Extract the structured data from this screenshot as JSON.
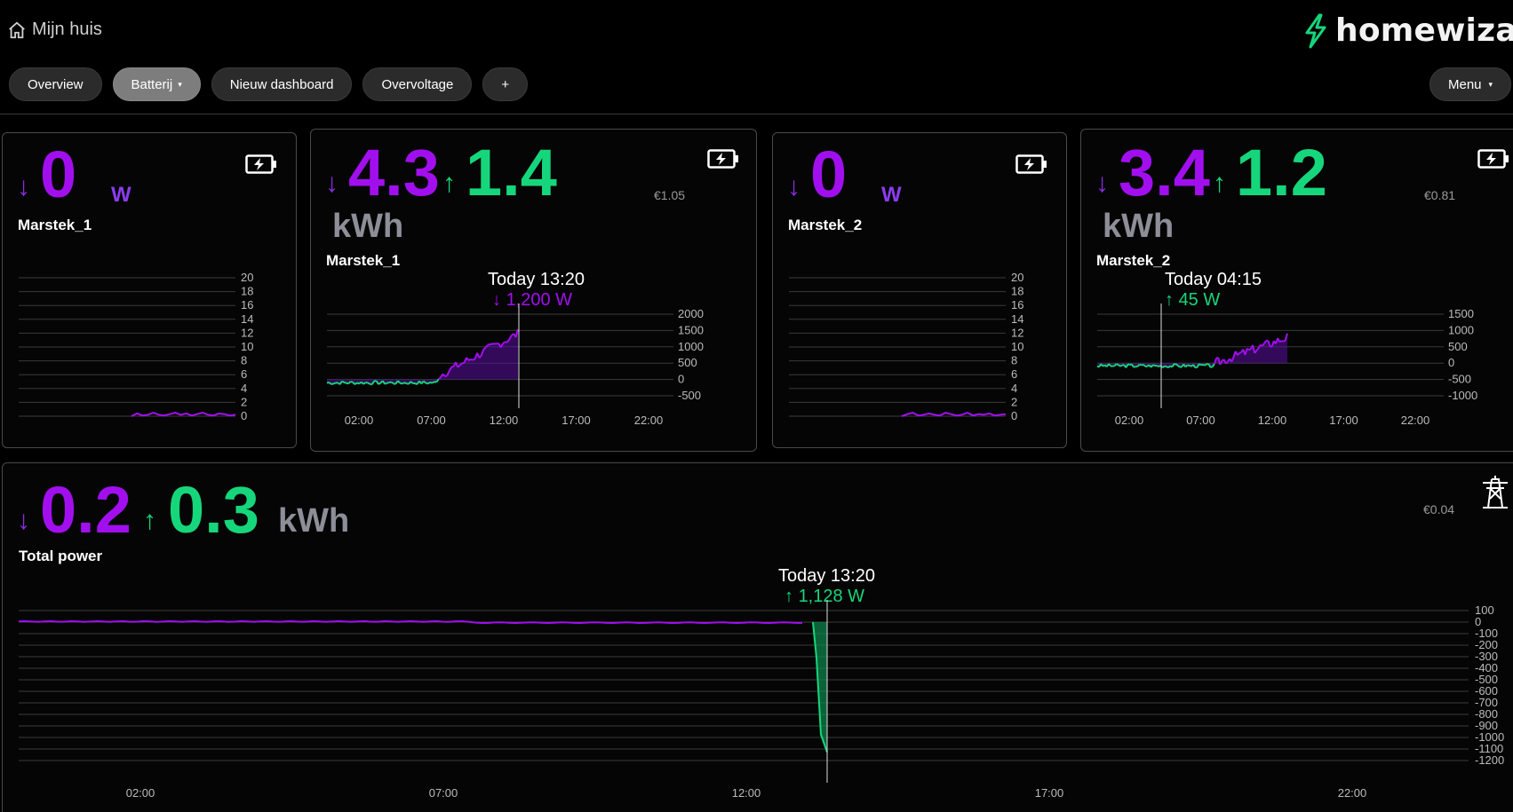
{
  "header": {
    "home_label": "Mijn huis",
    "logo_text": "homewizard",
    "tabs": [
      {
        "label": "Overview",
        "active": false
      },
      {
        "label": "Batterij",
        "active": true,
        "caret": "▾"
      },
      {
        "label": "Nieuw dashboard",
        "active": false
      },
      {
        "label": "Overvoltage",
        "active": false
      },
      {
        "label": "+",
        "active": false
      }
    ],
    "menu_label": "Menu",
    "menu_caret": "▾"
  },
  "icons": {
    "home": "home-icon",
    "logo": "lightning-icon",
    "battery": "battery-charging-icon",
    "grid": "power-pylon-icon"
  },
  "colors": {
    "purple": "#a20fee",
    "green": "#16d67b",
    "unit_gray": "#8e8e98"
  },
  "cards": [
    {
      "id": "marstek1-power",
      "arrow_down": "↓",
      "value": "0",
      "unit": "W",
      "name": "Marstek_1",
      "chart_data": {
        "type": "line",
        "y_ticks": [
          "20",
          "18",
          "16",
          "14",
          "12",
          "10",
          "8",
          "6",
          "4",
          "2",
          "0"
        ],
        "ylim": [
          0,
          20
        ],
        "grid": true,
        "series": [
          {
            "color": "#a20fee",
            "values": [
              0,
              0.4,
              0.1,
              0.2,
              0.5,
              0.2,
              0.1,
              0.3,
              0.5,
              0.2,
              0.4,
              0.1,
              0.3,
              0.5,
              0.2,
              0.1,
              0.4,
              0.3,
              0.1,
              0.2
            ]
          }
        ]
      }
    },
    {
      "id": "marstek1-energy",
      "arrow_down": "↓",
      "value_import": "4.3",
      "arrow_up": "↑",
      "value_export": "1.4",
      "unit": "kWh",
      "name": "Marstek_1",
      "cost": "€1.05",
      "tooltip": {
        "time": "Today 13:20",
        "arrow": "↓",
        "value": "1,200 W"
      },
      "chart_data": {
        "type": "area",
        "x_ticks": [
          "02:00",
          "07:00",
          "12:00",
          "17:00",
          "22:00"
        ],
        "y_ticks": [
          "2000",
          "1500",
          "1000",
          "500",
          "0",
          "-500"
        ],
        "ylim": [
          -500,
          2000
        ],
        "grid": true,
        "cursor_time": "13:20"
      }
    },
    {
      "id": "marstek2-power",
      "arrow_down": "↓",
      "value": "0",
      "unit": "W",
      "name": "Marstek_2",
      "chart_data": {
        "type": "line",
        "y_ticks": [
          "20",
          "18",
          "16",
          "14",
          "12",
          "10",
          "8",
          "6",
          "4",
          "2",
          "0"
        ],
        "ylim": [
          0,
          20
        ],
        "grid": true,
        "series": [
          {
            "color": "#a20fee",
            "values": [
              0,
              0.3,
              0.5,
              0.1,
              0.2,
              0.4,
              0.2,
              0.1,
              0.5,
              0.3,
              0.1,
              0.2,
              0.5,
              0.1,
              0.3,
              0.2,
              0.4,
              0.1,
              0.2,
              0.3
            ]
          }
        ]
      }
    },
    {
      "id": "marstek2-energy",
      "arrow_down": "↓",
      "value_import": "3.4",
      "arrow_up": "↑",
      "value_export": "1.2",
      "unit": "kWh",
      "name": "Marstek_2",
      "cost": "€0.81",
      "tooltip": {
        "time": "Today 04:15",
        "arrow": "↑",
        "value": "45 W"
      },
      "chart_data": {
        "type": "area",
        "x_ticks": [
          "02:00",
          "07:00",
          "12:00",
          "17:00",
          "22:00"
        ],
        "y_ticks": [
          "1500",
          "1000",
          "500",
          "0",
          "-500",
          "-1000"
        ],
        "ylim": [
          -1000,
          1500
        ],
        "grid": true,
        "cursor_time": "04:15"
      }
    }
  ],
  "total": {
    "arrow_down": "↓",
    "value_import": "0.2",
    "arrow_up": "↑",
    "value_export": "0.3",
    "unit": "kWh",
    "name": "Total power",
    "cost": "€0.04",
    "tooltip": {
      "time": "Today 13:20",
      "arrow": "↑",
      "value": "1,128 W"
    },
    "chart_data": {
      "type": "area",
      "x_ticks": [
        "02:00",
        "07:00",
        "12:00",
        "17:00",
        "22:00"
      ],
      "y_ticks": [
        "100",
        "0",
        "-100",
        "-200",
        "-300",
        "-400",
        "-500",
        "-600",
        "-700",
        "-800",
        "-900",
        "-1000",
        "-1100",
        "-1200"
      ],
      "ylim": [
        -1200,
        100
      ],
      "grid": true,
      "cursor_time": "13:20"
    }
  }
}
